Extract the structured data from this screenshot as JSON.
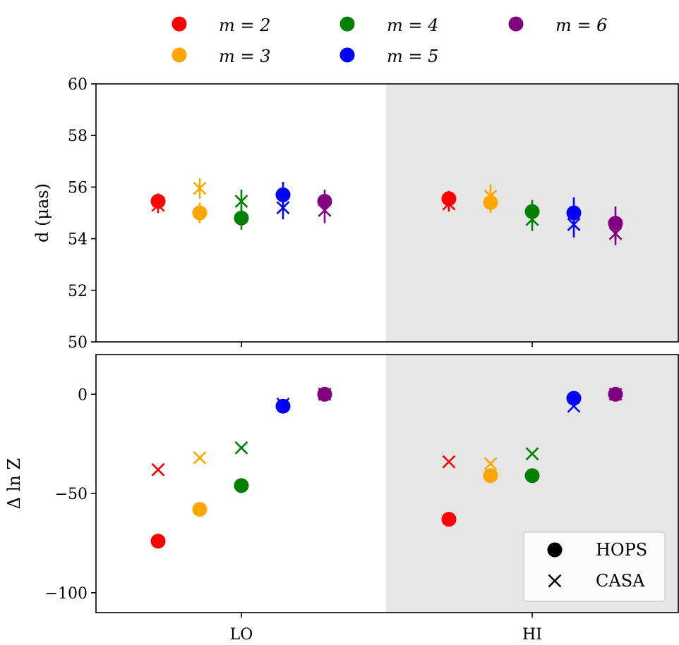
{
  "chart_data": {
    "type": "scatter",
    "title": "",
    "categories": [
      "LO",
      "HI"
    ],
    "series": [
      {
        "name": "m = 2",
        "color": "#ff0000"
      },
      {
        "name": "m = 3",
        "color": "#ffa500"
      },
      {
        "name": "m = 4",
        "color": "#008000"
      },
      {
        "name": "m = 5",
        "color": "#0000ff"
      },
      {
        "name": "m = 6",
        "color": "#800080"
      }
    ],
    "marker_legend": [
      {
        "marker": "circle",
        "label": "HOPS"
      },
      {
        "marker": "x",
        "label": "CASA"
      }
    ],
    "panels": [
      {
        "id": "top",
        "ylabel": "d (μas)",
        "ylim": [
          50,
          60
        ],
        "yticks": [
          "50",
          "52",
          "54",
          "56",
          "58",
          "60"
        ],
        "ytick_values": [
          50,
          52,
          54,
          56,
          58,
          60
        ],
        "HOPS": {
          "LO": [
            {
              "y": 55.45,
              "err": 0.3
            },
            {
              "y": 55.0,
              "err": 0.4
            },
            {
              "y": 54.8,
              "err": 0.45
            },
            {
              "y": 55.7,
              "err": 0.5
            },
            {
              "y": 55.45,
              "err": 0.45
            }
          ],
          "HI": [
            {
              "y": 55.55,
              "err": 0.3
            },
            {
              "y": 55.4,
              "err": 0.4
            },
            {
              "y": 55.05,
              "err": 0.45
            },
            {
              "y": 55.0,
              "err": 0.6
            },
            {
              "y": 54.6,
              "err": 0.65
            }
          ]
        },
        "CASA": {
          "LO": [
            {
              "y": 55.3,
              "err": 0.3
            },
            {
              "y": 55.95,
              "err": 0.4
            },
            {
              "y": 55.45,
              "err": 0.45
            },
            {
              "y": 55.2,
              "err": 0.45
            },
            {
              "y": 55.1,
              "err": 0.5
            }
          ],
          "HI": [
            {
              "y": 55.35,
              "err": 0.3
            },
            {
              "y": 55.65,
              "err": 0.45
            },
            {
              "y": 54.75,
              "err": 0.45
            },
            {
              "y": 54.55,
              "err": 0.5
            },
            {
              "y": 54.2,
              "err": 0.45
            }
          ]
        }
      },
      {
        "id": "bottom",
        "ylabel": "Δ ln Z",
        "ylim": [
          -110,
          20
        ],
        "yticks": [
          "−100",
          "−50",
          "0"
        ],
        "ytick_values": [
          -100,
          -50,
          0
        ],
        "xticks": [
          "LO",
          "HI"
        ],
        "HOPS": {
          "LO": [
            -74,
            -58,
            -46,
            -6,
            0
          ],
          "HI": [
            -63,
            -41,
            -41,
            -2,
            0
          ]
        },
        "CASA": {
          "LO": [
            -38,
            -32,
            -27,
            -5,
            0
          ],
          "HI": [
            -34,
            -35,
            -30,
            -6,
            0
          ]
        }
      }
    ],
    "shaded_region": "HI"
  }
}
